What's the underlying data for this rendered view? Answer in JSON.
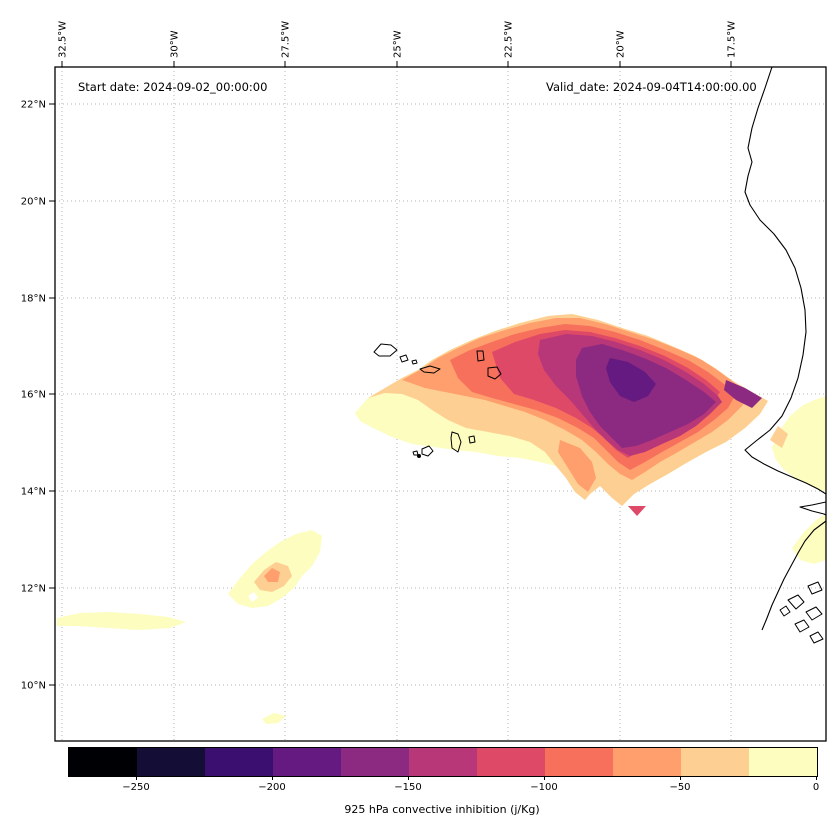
{
  "figure": {
    "start_date_label": "Start date: 2024-09-02_00:00:00",
    "valid_date_label": "Valid_date: 2024-09-04T14:00:00.00"
  },
  "axes": {
    "x_ticks": [
      "32.5°W",
      "30°W",
      "27.5°W",
      "25°W",
      "22.5°W",
      "20°W",
      "17.5°W"
    ],
    "y_ticks": [
      "22°N",
      "20°N",
      "18°N",
      "16°N",
      "14°N",
      "12°N",
      "10°N"
    ]
  },
  "colorbar": {
    "label": "925 hPa convective inhibition (j/Kg)",
    "vmin": -275,
    "vmax": 0,
    "colors": [
      "#000004",
      "#140e36",
      "#3b0f70",
      "#641a80",
      "#8c2981",
      "#b73779",
      "#de4968",
      "#f7705c",
      "#fe9f6d",
      "#fecf92",
      "#fcfdbf"
    ],
    "ticks": [
      {
        "label": "−250",
        "value": -250
      },
      {
        "label": "−200",
        "value": -200
      },
      {
        "label": "−150",
        "value": -150
      },
      {
        "label": "−100",
        "value": -100
      },
      {
        "label": "−50",
        "value": -50
      },
      {
        "label": "0",
        "value": 0
      }
    ]
  },
  "chart_data": {
    "type": "heatmap",
    "subtype": "filled_contour_map",
    "title": "925 hPa convective inhibition (j/Kg)",
    "annotations": [
      "Start date: 2024-09-02_00:00:00",
      "Valid_date: 2024-09-04T14:00:00.00"
    ],
    "colormap": "magma",
    "grid": "dotted",
    "units": "j/Kg",
    "map_extent": {
      "lon_west_deg": 32.7,
      "lon_east_deg": 15.4,
      "lat_south_deg": 8.8,
      "lat_north_deg": 22.8
    },
    "x_ticks_deg_west": [
      32.5,
      30,
      27.5,
      25,
      22.5,
      20,
      17.5
    ],
    "y_ticks_deg_north": [
      22,
      20,
      18,
      16,
      14,
      12,
      10
    ],
    "contour_levels_j_per_kg": [
      -275,
      -250,
      -225,
      -200,
      -175,
      -150,
      -125,
      -100,
      -75,
      -50,
      -25,
      0
    ],
    "features": [
      {
        "name": "main-cin-region",
        "description": "Large convective-inhibition maximum east/northeast of the Cape Verde islands",
        "lon_range_deg_west": [
          26.0,
          16.6
        ],
        "lat_range_deg_north": [
          13.4,
          17.7
        ],
        "min_value_j_per_kg": -225,
        "core_location": {
          "lon_deg_west": 19.8,
          "lat_deg_north": 15.8
        }
      },
      {
        "name": "southwest-patch",
        "description": "Weak CIN patch southwest of Cape Verde",
        "lon_range_deg_west": [
          28.8,
          26.6
        ],
        "lat_range_deg_north": [
          11.4,
          12.9
        ],
        "min_value_j_per_kg": -75
      },
      {
        "name": "west-strip",
        "description": "Thin weak CIN strip at far west",
        "lon_range_deg_west": [
          32.6,
          29.7
        ],
        "lat_range_deg_north": [
          11.0,
          11.5
        ],
        "min_value_j_per_kg": -25
      },
      {
        "name": "senegal-coast-patch",
        "description": "Weak CIN along the Senegal coast",
        "lon_range_deg_west": [
          16.6,
          15.4
        ],
        "lat_range_deg_north": [
          13.5,
          16.1
        ],
        "min_value_j_per_kg": -50
      },
      {
        "name": "south-small-patch",
        "description": "Tiny weak CIN patch in far south",
        "lon_range_deg_west": [
          28.1,
          27.5
        ],
        "lat_range_deg_north": [
          9.2,
          9.5
        ],
        "min_value_j_per_kg": -25
      }
    ]
  }
}
